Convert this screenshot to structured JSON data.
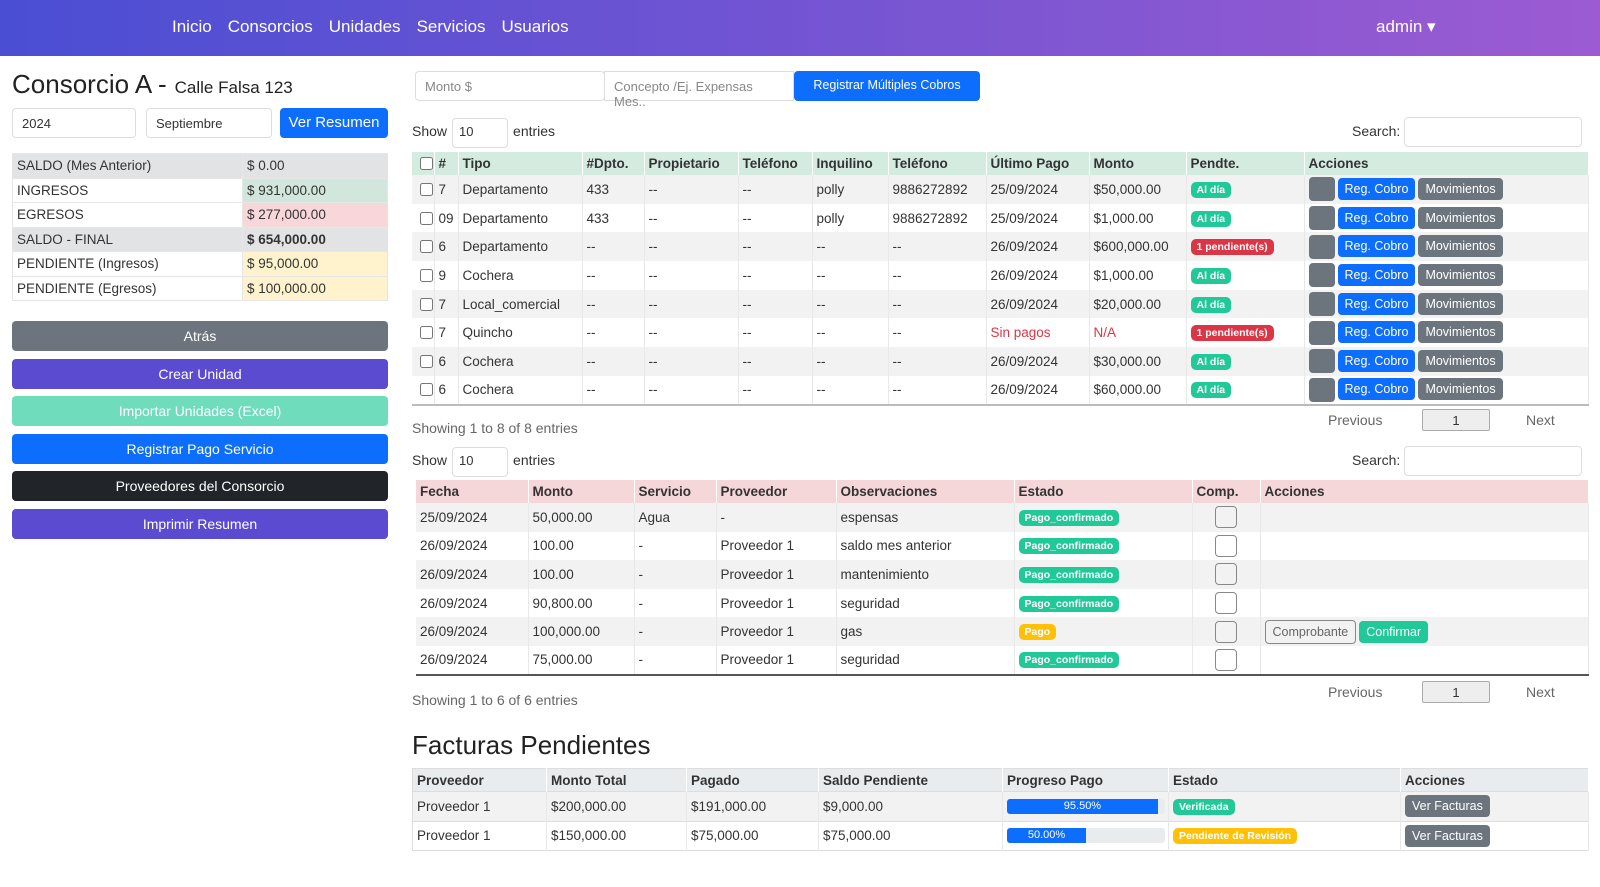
{
  "nav": {
    "links": [
      "Inicio",
      "Consorcios",
      "Unidades",
      "Servicios",
      "Usuarios"
    ],
    "user": "admin"
  },
  "sidebar": {
    "title": "Consorcio A -",
    "subtitle": "Calle Falsa 123",
    "year": "2024",
    "month": "Septiembre",
    "view_button": "Ver Resumen",
    "summary": [
      {
        "label": "SALDO (Mes Anterior)",
        "value": "$ 0.00",
        "label_color": "#e2e3e5",
        "color": "#e2e3e5"
      },
      {
        "label": "INGRESOS",
        "value": "$ 931,000.00",
        "color": "#d1e7dd"
      },
      {
        "label": "EGRESOS",
        "value": "$ 277,000.00",
        "color": "#f8d7da"
      },
      {
        "label": "SALDO - FINAL",
        "value": "$ 654,000.00",
        "label_color": "#e2e3e5",
        "color": "#e2e3e5"
      },
      {
        "label": "PENDIENTE (Ingresos)",
        "value": "$ 95,000.00",
        "color": "#fff3cd"
      },
      {
        "label": "PENDIENTE (Egresos)",
        "value": "$ 100,000.00",
        "color": "#fff3cd"
      }
    ],
    "buttons": [
      "Atrás",
      "Crear Unidad",
      "Importar Unidades (Excel)",
      "Registrar Pago Servicio",
      "Proveedores del Consorcio",
      "Imprimir Resumen"
    ]
  },
  "charges": {
    "amount_placeholder": "Monto $",
    "concept_placeholder": "Concepto /Ej. Expensas Mes..",
    "button": "Registrar Múltiples Cobros"
  },
  "units_table": {
    "show": "Show",
    "length": "10",
    "entries": "entries",
    "search": "Search:",
    "headers": [
      "#",
      "Tipo",
      "#Dpto.",
      "Propietario",
      "Teléfono",
      "Inquilino",
      "Teléfono",
      "Último Pago",
      "Monto",
      "Pendte.",
      "Acciones"
    ],
    "rows": [
      {
        "cells": [
          "7",
          "Departamento",
          "433",
          "--",
          "--",
          "polly",
          "9886272892",
          "25/09/2024",
          "$50,000.00"
        ],
        "status": {
          "text": "Al día",
          "color": "#20c997"
        }
      },
      {
        "cells": [
          "09",
          "Departamento",
          "433",
          "--",
          "--",
          "polly",
          "9886272892",
          "25/09/2024",
          "$1,000.00"
        ],
        "status": {
          "text": "Al día",
          "color": "#20c997"
        }
      },
      {
        "cells": [
          "6",
          "Departamento",
          "--",
          "--",
          "--",
          "--",
          "--",
          "26/09/2024",
          "$600,000.00"
        ],
        "status": {
          "text": "1 pendiente(s)",
          "color": "#dc3545"
        }
      },
      {
        "cells": [
          "9",
          "Cochera",
          "--",
          "--",
          "--",
          "--",
          "--",
          "26/09/2024",
          "$1,000.00"
        ],
        "status": {
          "text": "Al día",
          "color": "#20c997"
        }
      },
      {
        "cells": [
          "7",
          "Local_comercial",
          "--",
          "--",
          "--",
          "--",
          "--",
          "26/09/2024",
          "$20,000.00"
        ],
        "status": {
          "text": "Al día",
          "color": "#20c997"
        }
      },
      {
        "cells": [
          "7",
          "Quincho",
          "--",
          "--",
          "--",
          "--",
          "--",
          {
            "text": "Sin pagos",
            "color": "#dc3545"
          },
          {
            "text": "N/A",
            "color": "#dc3545"
          }
        ],
        "status": {
          "text": "1 pendiente(s)",
          "color": "#dc3545"
        }
      },
      {
        "cells": [
          "6",
          "Cochera",
          "--",
          "--",
          "--",
          "--",
          "--",
          "26/09/2024",
          "$30,000.00"
        ],
        "status": {
          "text": "Al día",
          "color": "#20c997"
        }
      },
      {
        "cells": [
          "6",
          "Cochera",
          "--",
          "--",
          "--",
          "--",
          "--",
          "26/09/2024",
          "$60,000.00"
        ],
        "status": {
          "text": "Al día",
          "color": "#20c997"
        }
      }
    ],
    "actions": [
      "Reg. Cobro",
      "Movimientos"
    ],
    "info": "Showing 1 to 8 of 8 entries",
    "previous": "Previous",
    "page": "1",
    "next": "Next"
  },
  "services_table": {
    "show": "Show",
    "length": "10",
    "entries": "entries",
    "search": "Search:",
    "headers": [
      "Fecha",
      "Monto",
      "Servicio",
      "Proveedor",
      "Observaciones",
      "Estado",
      "Comp.",
      "Acciones"
    ],
    "rows": [
      {
        "cells": [
          "25/09/2024",
          "50,000.00",
          "Agua",
          "-",
          "espensas"
        ],
        "status": {
          "text": "Pago_confirmado",
          "color": "#20c997"
        }
      },
      {
        "cells": [
          "26/09/2024",
          "100.00",
          "-",
          "Proveedor 1",
          "saldo mes anterior"
        ],
        "status": {
          "text": "Pago_confirmado",
          "color": "#20c997"
        }
      },
      {
        "cells": [
          "26/09/2024",
          "100.00",
          "-",
          "Proveedor 1",
          "mantenimiento"
        ],
        "status": {
          "text": "Pago_confirmado",
          "color": "#20c997"
        }
      },
      {
        "cells": [
          "26/09/2024",
          "90,800.00",
          "-",
          "Proveedor 1",
          "seguridad"
        ],
        "status": {
          "text": "Pago_confirmado",
          "color": "#20c997"
        }
      },
      {
        "cells": [
          "26/09/2024",
          "100,000.00",
          "-",
          "Proveedor 1",
          "gas"
        ],
        "status": {
          "text": "Pago",
          "color": "#ffc107"
        },
        "actions": [
          "Comprobante",
          "Confirmar"
        ]
      },
      {
        "cells": [
          "26/09/2024",
          "75,000.00",
          "-",
          "Proveedor 1",
          "seguridad"
        ],
        "status": {
          "text": "Pago_confirmado",
          "color": "#20c997"
        }
      }
    ],
    "info": "Showing 1 to 6 of 6 entries",
    "previous": "Previous",
    "page": "1",
    "next": "Next"
  },
  "invoices": {
    "title": "Facturas Pendientes",
    "headers": [
      "Proveedor",
      "Monto Total",
      "Pagado",
      "Saldo Pendiente",
      "Progreso Pago",
      "Estado",
      "Acciones"
    ],
    "rows": [
      {
        "cells": [
          "Proveedor 1",
          "$200,000.00",
          "$191,000.00",
          "$9,000.00"
        ],
        "progress": {
          "value": 95.5,
          "label": "95.50%"
        },
        "status": {
          "text": "Verificada",
          "color": "#20c997"
        },
        "action": "Ver Facturas"
      },
      {
        "cells": [
          "Proveedor 1",
          "$150,000.00",
          "$75,000.00",
          "$75,000.00"
        ],
        "progress": {
          "value": 50,
          "label": "50.00%"
        },
        "status": {
          "text": "Pendiente de Revisión",
          "color": "#ffc107"
        },
        "action": "Ver Facturas"
      }
    ]
  }
}
